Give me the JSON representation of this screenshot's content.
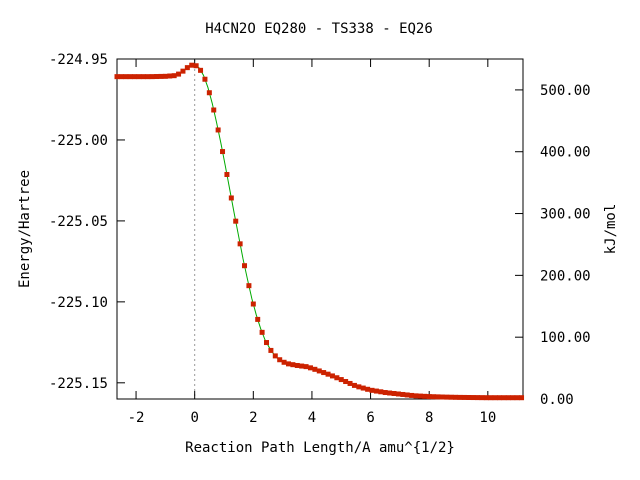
{
  "chart_data": {
    "type": "line",
    "title": "H4CN2O   EQ280 - TS338 - EQ26",
    "xlabel": "Reaction Path Length/A amu^{1/2}",
    "ylabel": "Energy/Hartree",
    "y2label": "kJ/mol",
    "xlim": [
      -2.65,
      11.2
    ],
    "ylim": [
      -225.16,
      -224.95
    ],
    "y2lim": [
      0.0,
      550.0
    ],
    "x_ticks": [
      -2,
      0,
      2,
      4,
      6,
      8,
      10
    ],
    "x_tick_labels": [
      "-2",
      "0",
      "2",
      "4",
      "6",
      "8",
      "10"
    ],
    "y_ticks": [
      -224.95,
      -225.0,
      -225.05,
      -225.1,
      -225.15
    ],
    "y_tick_labels": [
      "-224.95",
      "-225.00",
      "-225.05",
      "-225.10",
      "-225.15"
    ],
    "y2_ticks": [
      500,
      400,
      300,
      200,
      100,
      0
    ],
    "y2_tick_labels": [
      "500.00",
      "400.00",
      "300.00",
      "200.00",
      "100.00",
      "0.00"
    ],
    "ts_marker_x": 0.0,
    "colors": {
      "line": "#00aa00",
      "marker": "#cc2200",
      "ts_line": "#999999"
    },
    "series": [
      {
        "x": [
          -2.65,
          -2.0,
          -1.5,
          -1.0,
          -0.7,
          -0.5,
          -0.3,
          -0.15,
          0.0,
          0.15,
          0.3,
          0.45,
          0.6,
          0.75,
          0.9,
          1.05,
          1.2,
          1.35,
          1.5,
          1.65,
          1.8,
          1.95,
          2.1,
          2.25,
          2.4,
          2.6,
          2.8,
          3.0,
          3.2,
          3.5,
          3.8,
          4.0,
          4.3,
          4.6,
          5.0,
          5.5,
          6.0,
          6.5,
          7.0,
          7.5,
          8.0,
          8.5,
          9.0,
          9.5,
          10.0,
          10.5,
          11.0,
          11.2
        ],
        "y": [
          -224.9609,
          -224.9609,
          -224.9609,
          -224.9607,
          -224.9603,
          -224.959,
          -224.956,
          -224.954,
          -224.9535,
          -224.9555,
          -224.96,
          -224.9675,
          -224.9775,
          -224.9895,
          -225.0025,
          -225.0165,
          -225.031,
          -225.0455,
          -225.0595,
          -225.0735,
          -225.086,
          -225.098,
          -225.108,
          -225.1165,
          -225.1235,
          -225.13,
          -225.1345,
          -225.137,
          -225.1383,
          -225.1393,
          -225.14,
          -225.141,
          -225.143,
          -225.145,
          -225.148,
          -225.152,
          -225.1545,
          -225.156,
          -225.157,
          -225.158,
          -225.1585,
          -225.1588,
          -225.159,
          -225.1591,
          -225.1592,
          -225.1592,
          -225.1592,
          -225.1592
        ]
      }
    ]
  }
}
